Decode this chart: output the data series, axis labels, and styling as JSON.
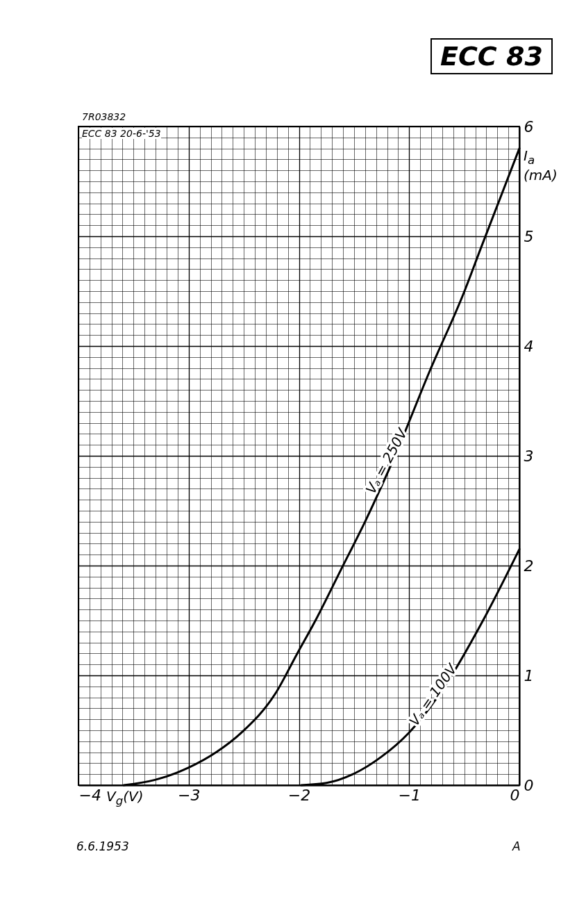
{
  "chart_data": {
    "type": "line",
    "title": "ECC 83",
    "xlabel": "V$_{g}$(V)",
    "ylabel": "I$_{a}$ (mA)",
    "annotations": [
      "7R03832",
      "ECC 83 20-6-'53",
      "6.6.1953",
      "A"
    ],
    "series": [
      {
        "name": "Vₐ = 250V",
        "color": "#000000",
        "x": [
          -3.59,
          -3.3,
          -3.0,
          -2.75,
          -2.52,
          -2.21,
          -2.02,
          -1.85,
          -1.62,
          -1.4,
          -1.12,
          -0.81,
          -0.51,
          -0.35,
          0
        ],
        "values": [
          0,
          0.05,
          0.16,
          0.3,
          0.48,
          0.84,
          1.19,
          1.5,
          1.96,
          2.4,
          3.02,
          3.78,
          4.47,
          4.89,
          5.8
        ]
      },
      {
        "name": "Vₐ = 100V",
        "color": "#000000",
        "x": [
          -1.98,
          -1.75,
          -1.51,
          -1.25,
          -1.0,
          -0.69,
          -0.33,
          0
        ],
        "values": [
          0,
          0.02,
          0.1,
          0.26,
          0.48,
          0.88,
          1.5,
          2.15
        ]
      }
    ],
    "xlim": [
      -4,
      0
    ],
    "ylim": [
      0,
      6
    ],
    "xticks": [
      -4,
      -3,
      -2,
      -1,
      0
    ],
    "yticks": [
      0,
      1,
      2,
      3,
      4,
      5,
      6
    ],
    "grid": true,
    "marker": "none",
    "line_style": "solid"
  }
}
